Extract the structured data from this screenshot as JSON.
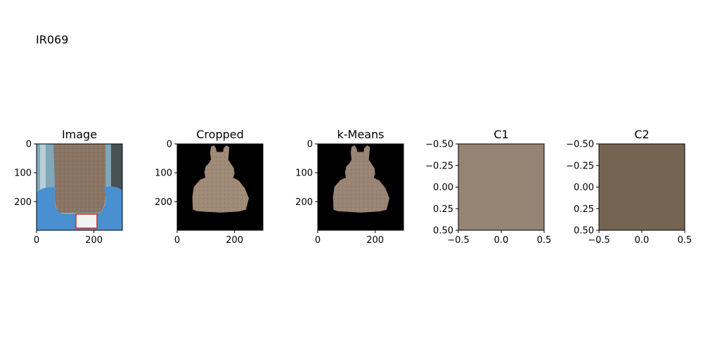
{
  "figure": {
    "suptitle": "IR069"
  },
  "chart_data": [
    {
      "type": "image",
      "title": "Image",
      "content": "photo of back of neck with blue towel",
      "xticks": [
        "0",
        "200"
      ],
      "yticks": [
        "0",
        "100",
        "200"
      ],
      "xlim": [
        0,
        299
      ],
      "ylim": [
        299,
        0
      ]
    },
    {
      "type": "image",
      "title": "Cropped",
      "content": "segmented skin region on black background",
      "xticks": [
        "0",
        "200"
      ],
      "yticks": [
        "0",
        "100",
        "200"
      ],
      "xlim": [
        0,
        299
      ],
      "ylim": [
        299,
        0
      ]
    },
    {
      "type": "image",
      "title": "k-Means",
      "content": "k-means clustered skin region on black background",
      "xticks": [
        "0",
        "200"
      ],
      "yticks": [
        "0",
        "100",
        "200"
      ],
      "xlim": [
        0,
        299
      ],
      "ylim": [
        299,
        0
      ]
    },
    {
      "type": "heatmap",
      "title": "C1",
      "color": "#958473",
      "xticks": [
        "−0.5",
        "0.0",
        "0.5"
      ],
      "yticks": [
        "−0.50",
        "−0.25",
        "0.00",
        "0.25",
        "0.50"
      ],
      "xlim": [
        -0.5,
        0.5
      ],
      "ylim": [
        0.5,
        -0.5
      ]
    },
    {
      "type": "heatmap",
      "title": "C2",
      "color": "#766453",
      "xticks": [
        "−0.5",
        "0.0",
        "0.5"
      ],
      "yticks": [
        "−0.50",
        "−0.25",
        "0.00",
        "0.25",
        "0.50"
      ],
      "xlim": [
        -0.5,
        0.5
      ],
      "ylim": [
        0.5,
        -0.5
      ]
    }
  ],
  "palette": {
    "background": "#ffffff",
    "skin": "#8a7565",
    "skin_light": "#a08a78",
    "towel": "#4a8fd0",
    "wall": "#7fa8b8",
    "label": "#c03030",
    "masked": "#000000"
  }
}
